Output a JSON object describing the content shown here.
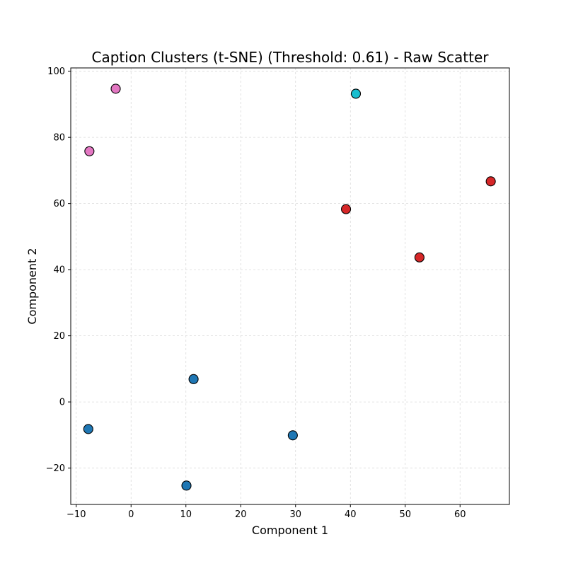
{
  "chart_data": {
    "type": "scatter",
    "title": "Caption Clusters (t-SNE) (Threshold: 0.61) - Raw Scatter",
    "xlabel": "Component 1",
    "ylabel": "Component 2",
    "xlim": [
      -11,
      69
    ],
    "ylim": [
      -31,
      101
    ],
    "xticks": [
      -10,
      0,
      10,
      20,
      30,
      40,
      50,
      60
    ],
    "yticks": [
      -20,
      0,
      20,
      40,
      60,
      80,
      100
    ],
    "xtick_labels": [
      "−10",
      "0",
      "10",
      "20",
      "30",
      "40",
      "50",
      "60"
    ],
    "ytick_labels": [
      "−20",
      "0",
      "20",
      "40",
      "60",
      "80",
      "100"
    ],
    "grid": true,
    "legend": "none",
    "points": [
      {
        "x": -2.8,
        "y": 94.7,
        "color": "#e377c2"
      },
      {
        "x": -7.6,
        "y": 75.8,
        "color": "#e377c2"
      },
      {
        "x": 41.0,
        "y": 93.2,
        "color": "#17becf"
      },
      {
        "x": 65.6,
        "y": 66.7,
        "color": "#d62728"
      },
      {
        "x": 39.2,
        "y": 58.3,
        "color": "#d62728"
      },
      {
        "x": 52.6,
        "y": 43.7,
        "color": "#d62728"
      },
      {
        "x": 11.4,
        "y": 6.9,
        "color": "#1f77b4"
      },
      {
        "x": -7.8,
        "y": -8.2,
        "color": "#1f77b4"
      },
      {
        "x": 29.5,
        "y": -10.1,
        "color": "#1f77b4"
      },
      {
        "x": 10.1,
        "y": -25.3,
        "color": "#1f77b4"
      }
    ]
  }
}
